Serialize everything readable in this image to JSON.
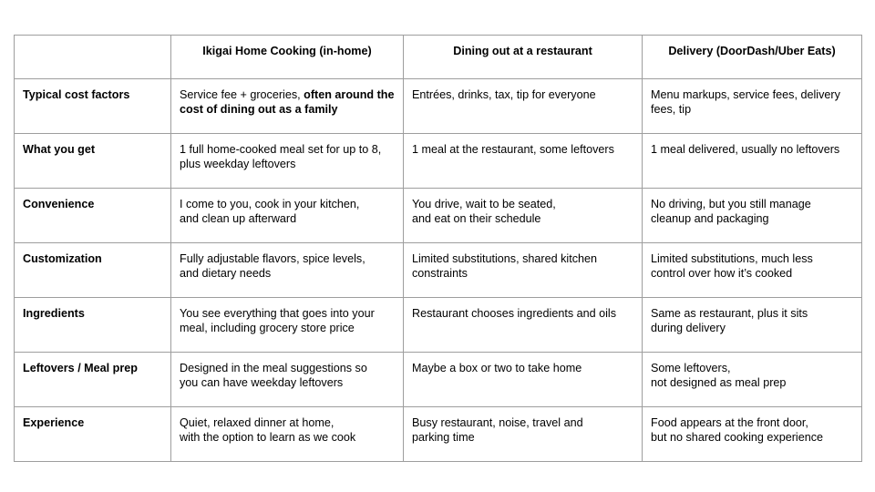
{
  "header": [
    "",
    "Ikigai Home Cooking (in-home)",
    "Dining out at a restaurant",
    "Delivery (DoorDash/Uber Eats)"
  ],
  "rows": [
    {
      "label": "Typical cost factors",
      "home_plain": "Service fee + groceries, ",
      "home_bold": "often around the cost of dining out as a family",
      "restaurant": "Entrées, drinks, tax, tip for everyone",
      "delivery": "Menu markups, service fees, delivery fees, tip"
    },
    {
      "label": "What you get",
      "home": "1 full home-cooked meal set for up to 8,\nplus weekday leftovers",
      "restaurant": "1 meal at the restaurant, some leftovers",
      "delivery": "1 meal delivered, usually no leftovers"
    },
    {
      "label": "Convenience",
      "home": "I come to you, cook in your kitchen,\nand clean up afterward",
      "restaurant": "You drive, wait to be seated,\nand eat on their schedule",
      "delivery": "No driving, but you still manage\ncleanup and packaging"
    },
    {
      "label": "Customization",
      "home": "Fully adjustable flavors, spice levels,\nand dietary needs",
      "restaurant": "Limited substitutions, shared kitchen\nconstraints",
      "delivery": "Limited substitutions, much less\ncontrol over how it’s cooked"
    },
    {
      "label": "Ingredients",
      "home": "You see everything that goes into your\nmeal, including grocery store price",
      "restaurant": "Restaurant chooses ingredients and oils",
      "delivery": "Same as restaurant, plus it sits\nduring delivery"
    },
    {
      "label": "Leftovers / Meal prep",
      "home": "Designed in the meal suggestions so\nyou can have weekday leftovers",
      "restaurant": "Maybe a box or two to take home",
      "delivery": "Some leftovers,\nnot designed as meal prep"
    },
    {
      "label": "Experience",
      "home": "Quiet, relaxed dinner at home,\nwith the option to learn as we cook",
      "restaurant": "Busy restaurant, noise, travel and\nparking time",
      "delivery": "Food appears at the front door,\nbut no shared cooking experience"
    }
  ]
}
